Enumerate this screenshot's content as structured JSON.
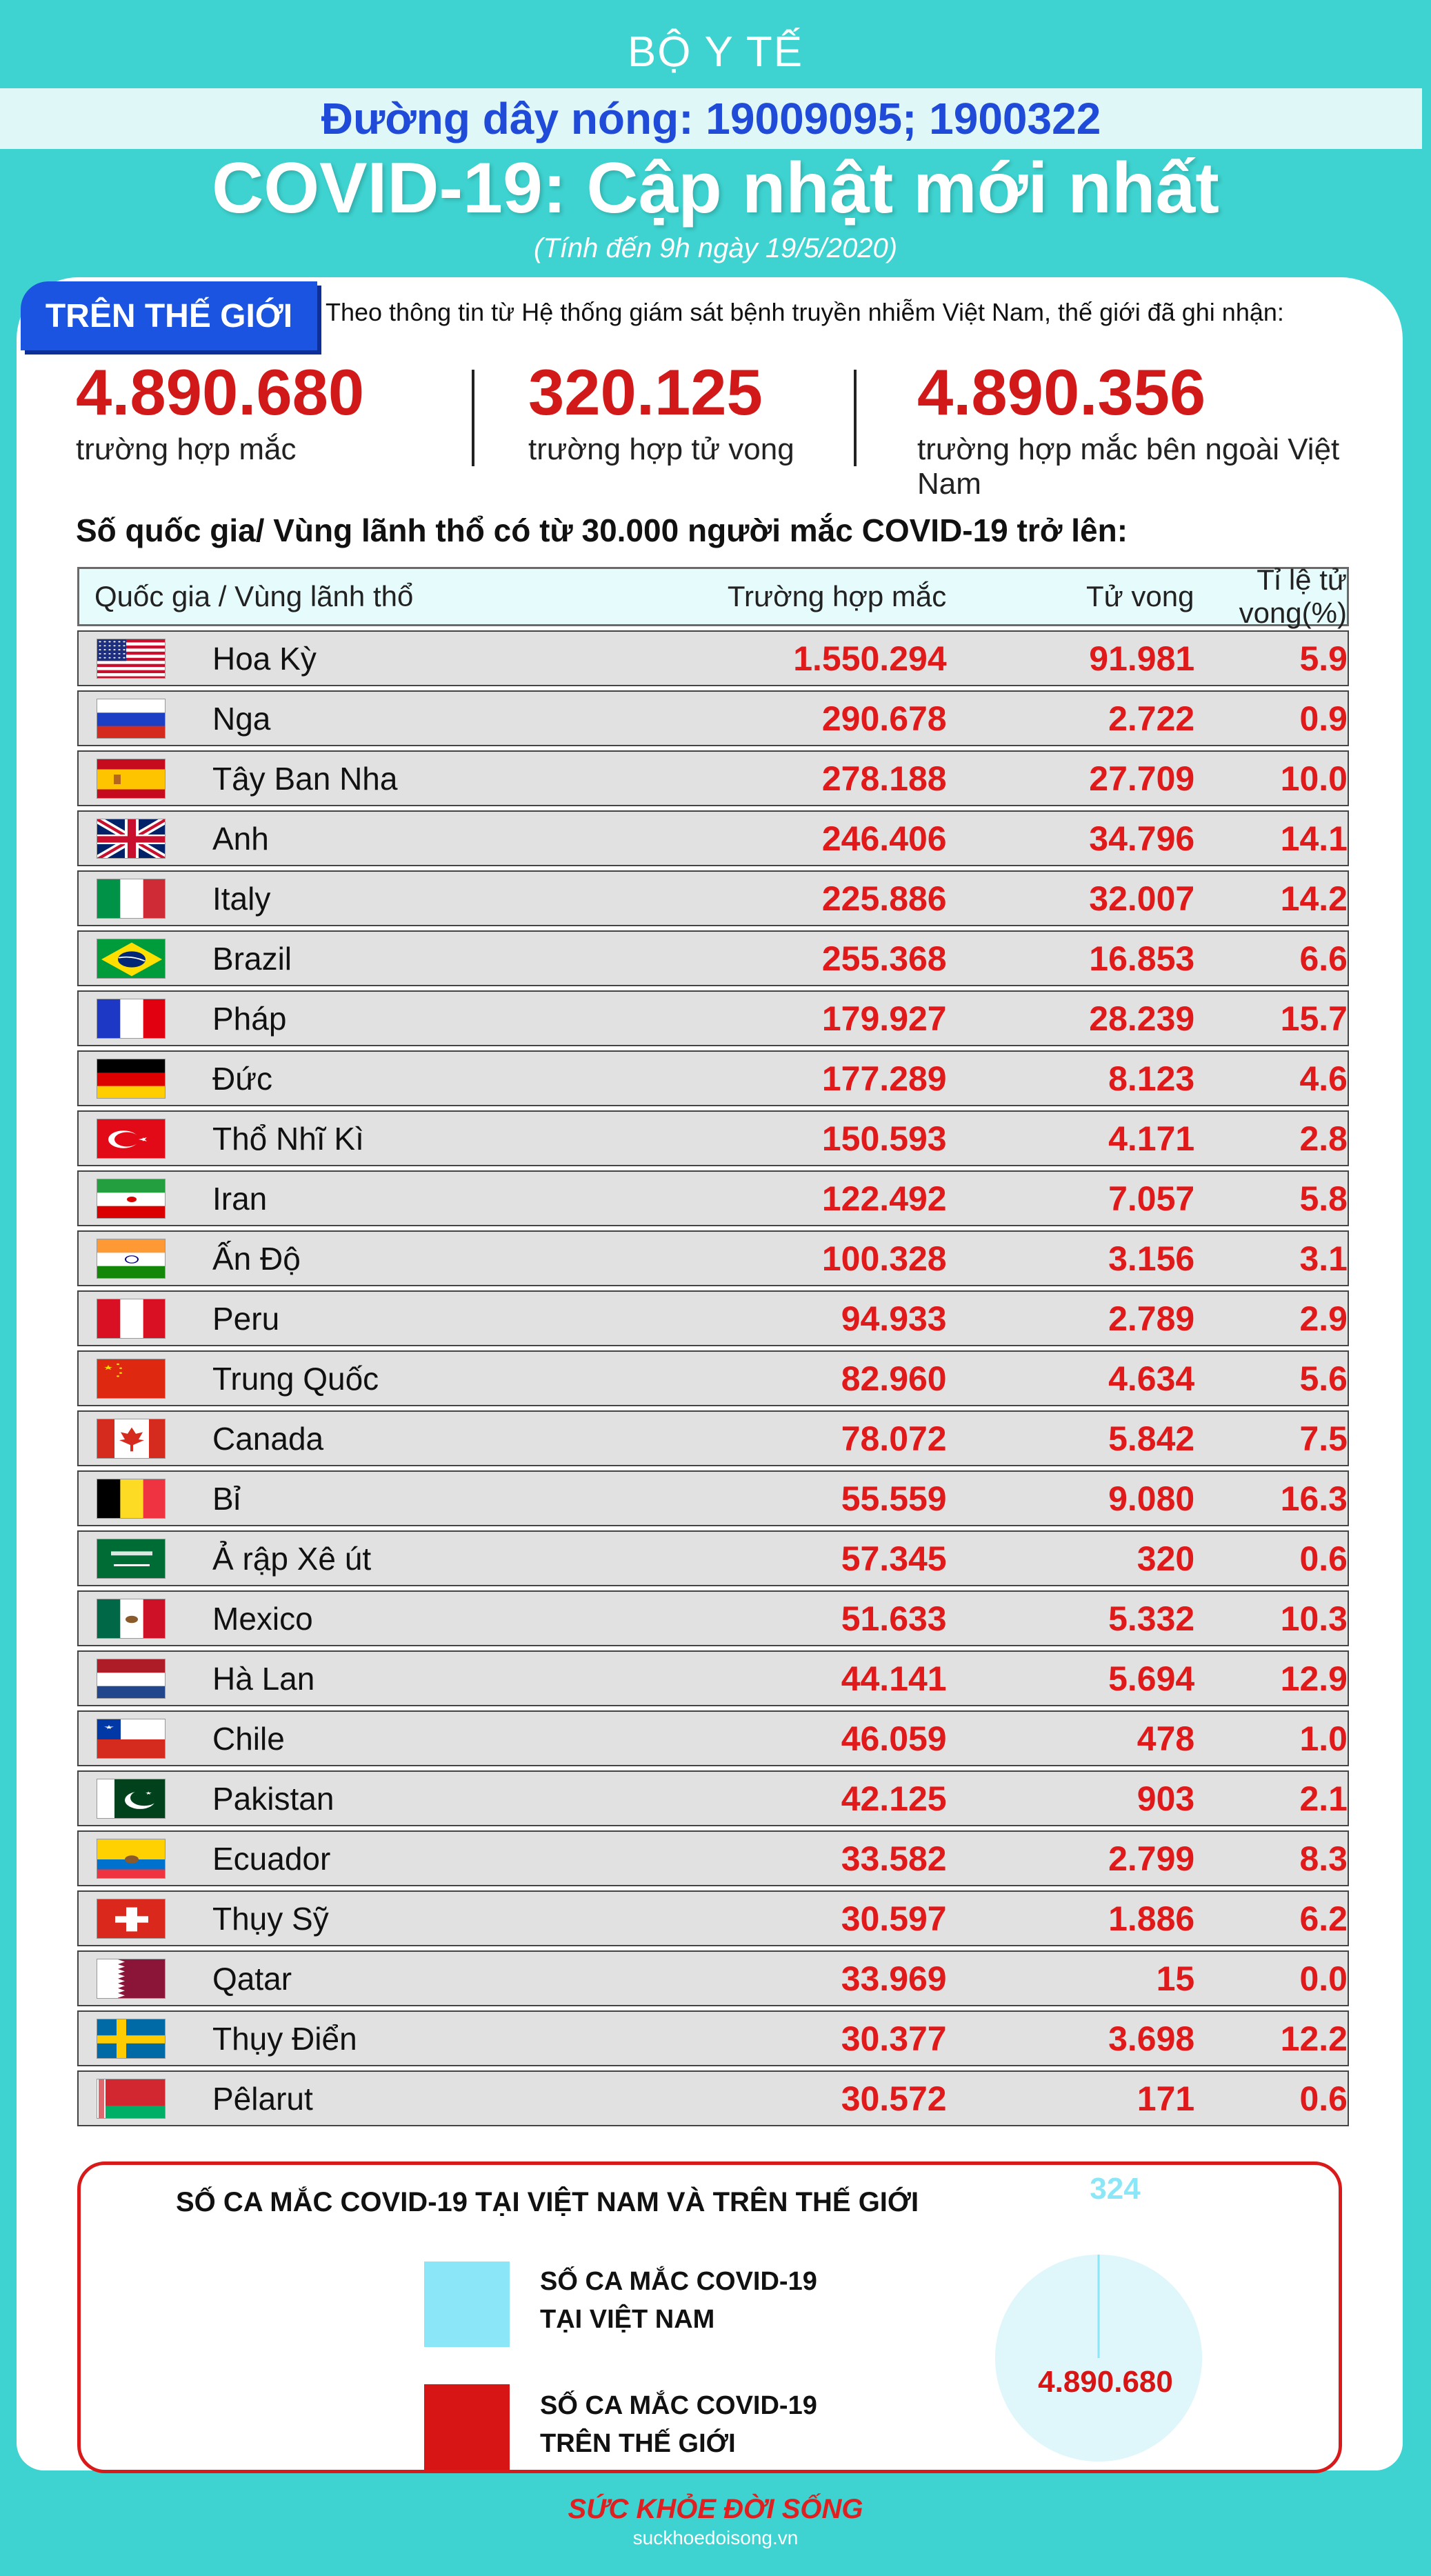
{
  "header": {
    "ministry": "BỘ Y TẾ",
    "hotline": "Đường dây nóng: 19009095; 1900322",
    "title": "COVID-19: Cập nhật mới nhất",
    "subtitle": "(Tính đến 9h ngày 19/5/2020)"
  },
  "world": {
    "tag": "TRÊN THẾ GIỚI",
    "intro": "Theo thông tin từ Hệ thống giám sát bệnh truyền nhiễm Việt Nam, thế giới đã ghi nhận:",
    "stats": [
      {
        "value": "4.890.680",
        "label": "trường hợp mắc"
      },
      {
        "value": "320.125",
        "label": "trường hợp tử vong"
      },
      {
        "value": "4.890.356",
        "label": "trường hợp  mắc bên ngoài Việt Nam"
      }
    ]
  },
  "table": {
    "title": "Số quốc gia/ Vùng lãnh thổ có từ 30.000 người  mắc COVID-19 trở lên:",
    "headers": [
      "Quốc gia / Vùng lãnh thổ",
      "Trường hợp mắc",
      "Tử vong",
      "Tỉ lệ tử vong(%)"
    ],
    "rows": [
      {
        "country": "Hoa Kỳ",
        "flag": "usa-flag",
        "cases": "1.550.294",
        "deaths": "91.981",
        "rate": "5.9"
      },
      {
        "country": "Nga",
        "flag": "russia-flag",
        "cases": "290.678",
        "deaths": "2.722",
        "rate": "0.9"
      },
      {
        "country": "Tây Ban Nha",
        "flag": "spain-flag",
        "cases": "278.188",
        "deaths": "27.709",
        "rate": "10.0"
      },
      {
        "country": "Anh",
        "flag": "uk-flag",
        "cases": "246.406",
        "deaths": "34.796",
        "rate": "14.1"
      },
      {
        "country": "Italy",
        "flag": "italy-flag",
        "cases": "225.886",
        "deaths": "32.007",
        "rate": "14.2"
      },
      {
        "country": "Brazil",
        "flag": "brazil-flag",
        "cases": "255.368",
        "deaths": "16.853",
        "rate": "6.6"
      },
      {
        "country": "Pháp",
        "flag": "france-flag",
        "cases": "179.927",
        "deaths": "28.239",
        "rate": "15.7"
      },
      {
        "country": "Đức",
        "flag": "germany-flag",
        "cases": "177.289",
        "deaths": "8.123",
        "rate": "4.6"
      },
      {
        "country": "Thổ Nhĩ Kì",
        "flag": "turkey-flag",
        "cases": "150.593",
        "deaths": "4.171",
        "rate": "2.8"
      },
      {
        "country": "Iran",
        "flag": "iran-flag",
        "cases": "122.492",
        "deaths": "7.057",
        "rate": "5.8"
      },
      {
        "country": "Ấn Độ",
        "flag": "india-flag",
        "cases": "100.328",
        "deaths": "3.156",
        "rate": "3.1"
      },
      {
        "country": "Peru",
        "flag": "peru-flag",
        "cases": "94.933",
        "deaths": "2.789",
        "rate": "2.9"
      },
      {
        "country": "Trung Quốc",
        "flag": "china-flag",
        "cases": "82.960",
        "deaths": "4.634",
        "rate": "5.6"
      },
      {
        "country": "Canada",
        "flag": "canada-flag",
        "cases": "78.072",
        "deaths": "5.842",
        "rate": "7.5"
      },
      {
        "country": "Bỉ",
        "flag": "belgium-flag",
        "cases": "55.559",
        "deaths": "9.080",
        "rate": "16.3"
      },
      {
        "country": "Ả rập Xê út",
        "flag": "saudi-flag",
        "cases": "57.345",
        "deaths": "320",
        "rate": "0.6"
      },
      {
        "country": "Mexico",
        "flag": "mexico-flag",
        "cases": "51.633",
        "deaths": "5.332",
        "rate": "10.3"
      },
      {
        "country": "Hà Lan",
        "flag": "netherlands-flag",
        "cases": "44.141",
        "deaths": "5.694",
        "rate": "12.9"
      },
      {
        "country": "Chile",
        "flag": "chile-flag",
        "cases": "46.059",
        "deaths": "478",
        "rate": "1.0"
      },
      {
        "country": "Pakistan",
        "flag": "pakistan-flag",
        "cases": "42.125",
        "deaths": "903",
        "rate": "2.1"
      },
      {
        "country": "Ecuador",
        "flag": "ecuador-flag",
        "cases": "33.582",
        "deaths": "2.799",
        "rate": "8.3"
      },
      {
        "country": "Thụy Sỹ",
        "flag": "switzerland-flag",
        "cases": "30.597",
        "deaths": "1.886",
        "rate": "6.2"
      },
      {
        "country": "Qatar",
        "flag": "qatar-flag",
        "cases": "33.969",
        "deaths": "15",
        "rate": "0.0"
      },
      {
        "country": "Thụy Điển",
        "flag": "sweden-flag",
        "cases": "30.377",
        "deaths": "3.698",
        "rate": "12.2"
      },
      {
        "country": "Pêlarut",
        "flag": "belarus-flag",
        "cases": "30.572",
        "deaths": "171",
        "rate": "0.6"
      }
    ]
  },
  "compare": {
    "title": "SỐ CA MẮC COVID-19 TẠI VIỆT NAM VÀ TRÊN THẾ GIỚI",
    "vn_label_1": "SỐ CA MẮC COVID-19",
    "vn_label_2": "TẠI VIỆT NAM",
    "world_label_1": "SỐ CA MẮC COVID-19",
    "world_label_2": "TRÊN THẾ GIỚI",
    "vn_value": "324",
    "world_value": "4.890.680",
    "colors": {
      "vn": "#8be6f7",
      "world": "#d71515"
    }
  },
  "chart_data": {
    "type": "pie",
    "categories": [
      "SỐ CA MẮC COVID-19 TẠI VIỆT NAM",
      "SỐ CA MẮC COVID-19 TRÊN THẾ GIỚI"
    ],
    "values": [
      324,
      4890680
    ]
  },
  "footer": {
    "brand": "SỨC KHỎE  ĐỜI SỐNG",
    "url": "suckhoedoisong.vn"
  }
}
